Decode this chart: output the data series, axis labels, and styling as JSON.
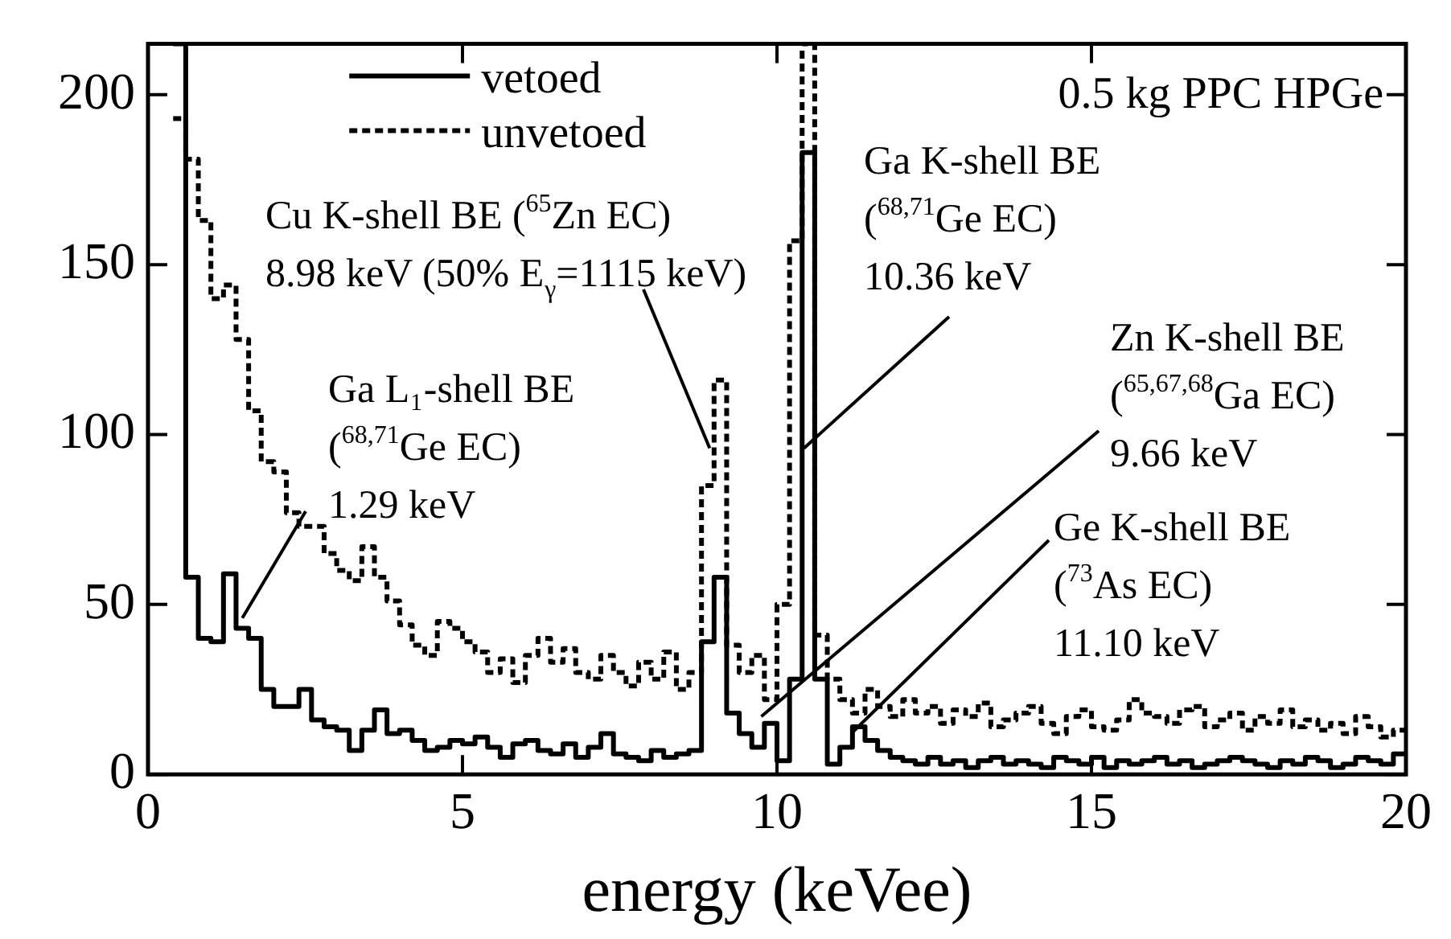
{
  "chart_data": {
    "type": "histogram",
    "title": "0.5 kg PPC HPGe",
    "xlabel": "energy (keVee)",
    "bins": [
      0.4,
      0.6,
      0.8,
      1.0,
      1.2,
      1.4,
      1.6,
      1.8,
      2.0,
      2.2,
      2.4,
      2.6,
      2.8,
      3.0,
      3.2,
      3.4,
      3.6,
      3.8,
      4.0,
      4.2,
      4.4,
      4.6,
      4.8,
      5.0,
      5.2,
      5.4,
      5.6,
      5.8,
      6.0,
      6.2,
      6.4,
      6.6,
      6.8,
      7.0,
      7.2,
      7.4,
      7.6,
      7.8,
      8.0,
      8.2,
      8.4,
      8.6,
      8.8,
      9.0,
      9.2,
      9.4,
      9.6,
      9.8,
      10.0,
      10.2,
      10.4,
      10.6,
      10.8,
      11.0,
      11.2,
      11.4,
      11.6,
      11.8,
      12.0,
      12.2,
      12.4,
      12.6,
      12.8,
      13.0,
      13.2,
      13.4,
      13.6,
      13.8,
      14.0,
      14.2,
      14.4,
      14.6,
      14.8,
      15.0,
      15.2,
      15.4,
      15.6,
      15.8,
      16.0,
      16.2,
      16.4,
      16.6,
      16.8,
      17.0,
      17.2,
      17.4,
      17.6,
      17.8,
      18.0,
      18.2,
      18.4,
      18.6,
      18.8,
      19.0,
      19.2,
      19.4,
      19.6,
      19.8,
      20.0
    ],
    "series": [
      {
        "name": "vetoed",
        "color": "#000000",
        "line_style": "solid",
        "values": [
          215,
          58,
          40,
          39,
          59,
          43,
          40,
          25,
          20,
          20,
          25,
          16,
          14,
          13,
          7,
          13,
          19,
          12,
          13,
          10,
          7,
          8,
          10,
          9,
          11,
          8,
          5,
          9,
          10,
          7,
          6,
          9,
          5,
          8,
          12,
          6,
          5,
          4,
          7,
          5,
          6,
          7,
          39,
          58,
          18,
          12,
          8,
          15,
          4,
          28,
          183,
          28,
          3,
          8,
          14,
          10,
          7,
          5,
          4,
          3,
          5,
          3,
          4,
          2,
          4,
          5,
          3,
          4,
          3,
          2,
          5,
          4,
          3,
          5,
          2,
          4,
          3,
          4,
          5,
          3,
          4,
          2,
          3,
          4,
          5,
          4,
          3,
          2,
          4,
          3,
          5,
          4,
          2,
          3,
          5,
          4,
          3,
          6
        ]
      },
      {
        "name": "unvetoed",
        "color": "#000000",
        "line_style": "dashed",
        "values": [
          193,
          181,
          163,
          140,
          144,
          128,
          107,
          92,
          89,
          77,
          73,
          73,
          65,
          60,
          57,
          67,
          58,
          51,
          44,
          38,
          35,
          45,
          43,
          39,
          36,
          30,
          34,
          27,
          35,
          40,
          33,
          37,
          30,
          28,
          35,
          30,
          26,
          33,
          28,
          36,
          25,
          30,
          85,
          116,
          38,
          30,
          35,
          22,
          50,
          157,
          215,
          41,
          28,
          22,
          18,
          25,
          20,
          17,
          22,
          18,
          20,
          15,
          19,
          17,
          21,
          14,
          16,
          18,
          20,
          15,
          12,
          17,
          19,
          14,
          13,
          16,
          22,
          18,
          17,
          15,
          19,
          20,
          14,
          16,
          18,
          13,
          17,
          15,
          19,
          14,
          16,
          13,
          15,
          12,
          17,
          14,
          11,
          13
        ]
      }
    ],
    "xlim": [
      0,
      20
    ],
    "xticks": [
      0,
      5,
      10,
      15,
      20
    ],
    "ylim": [
      0,
      215
    ],
    "yticks": [
      0,
      50,
      100,
      150,
      200
    ],
    "legend": "top left",
    "grid": false,
    "annotations": [
      {
        "text": "Ga L₁-shell BE\n($^{68,71}$Ge EC)\n1.29 keV",
        "x": 1.5,
        "y": 46
      },
      {
        "text": "Cu K-shell BE ($^{65}$Zn EC)\n8.98 keV (50% E$_{γ}$=1115 keV)",
        "x": 8.93,
        "y": 96
      },
      {
        "text": "Ga K-shell BE\n($^{68,71}$Ge EC)\n10.36 keV",
        "x": 10.43,
        "y": 96
      },
      {
        "text": "Zn K-shell BE\n($^{65,67,68}$Ga EC)\n9.66 keV",
        "x": 9.75,
        "y": 17
      },
      {
        "text": "Ge K-shell BE\n($^{73}$As EC)\n11.10 keV",
        "x": 11.18,
        "y": 12
      }
    ]
  }
}
